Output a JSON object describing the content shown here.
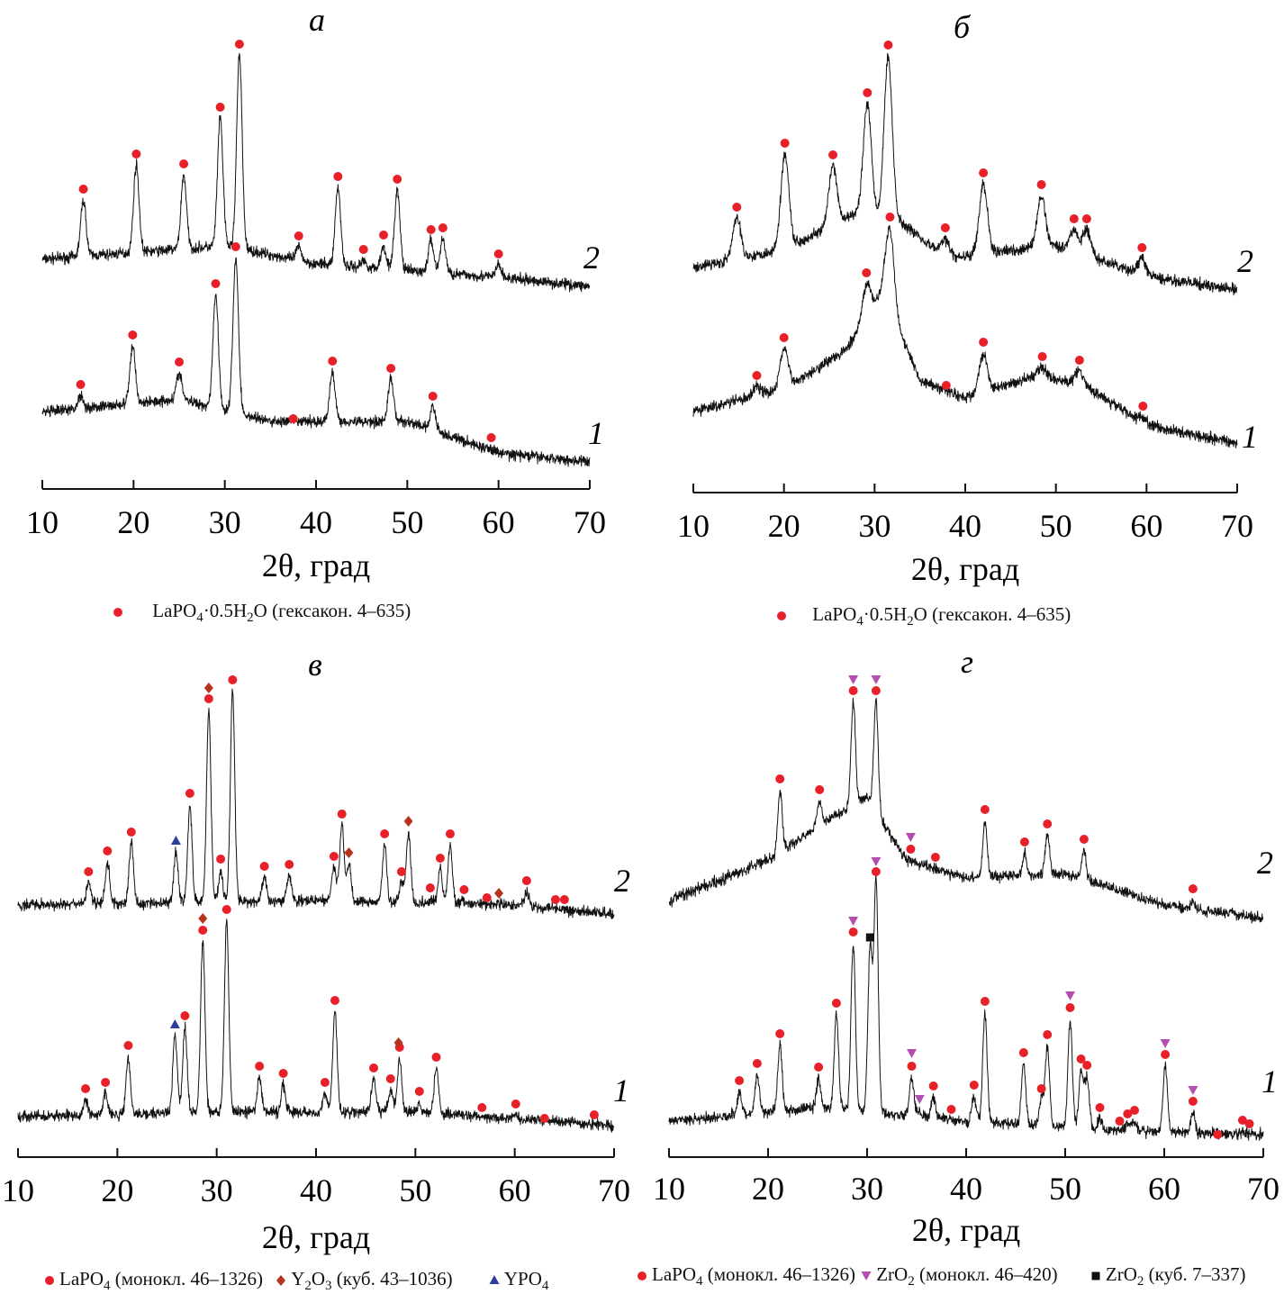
{
  "chart_data": [
    {
      "type": "line",
      "panel_label": "а",
      "xlabel": "2θ, град",
      "xlim": [
        10,
        70
      ],
      "xticks": [
        "10",
        "20",
        "30",
        "40",
        "50",
        "60",
        "70"
      ],
      "grid": false,
      "legend": [
        {
          "symbol": "circle",
          "color": "#e8202a",
          "label": "LaPO4·0.5H2O (гексакон. 4–635)"
        }
      ],
      "series": [
        {
          "name": "2",
          "background": [
            [
              10,
              51
            ],
            [
              30,
              54
            ],
            [
              40,
              50
            ],
            [
              60,
              47
            ],
            [
              70,
              45
            ]
          ],
          "markers": [
            {
              "legend": 0,
              "points": [
                [
                  14.5,
                  66.6
                ],
                [
                  20.3,
                  74.4
                ],
                [
                  25.5,
                  72.2
                ],
                [
                  29.5,
                  84.8
                ],
                [
                  31.6,
                  98.8
                ],
                [
                  38.1,
                  56.2
                ],
                [
                  42.4,
                  69.4
                ],
                [
                  45.2,
                  53.2
                ],
                [
                  47.4,
                  56.4
                ],
                [
                  48.9,
                  68.8
                ],
                [
                  52.6,
                  57.6
                ],
                [
                  53.9,
                  58
                ],
                [
                  60.0,
                  52.2
                ]
              ]
            }
          ]
        },
        {
          "name": "1",
          "background": [
            [
              10,
              17
            ],
            [
              25,
              20
            ],
            [
              35,
              15
            ],
            [
              50,
              15
            ],
            [
              60,
              8
            ],
            [
              70,
              6
            ]
          ],
          "markers": [
            {
              "legend": 0,
              "points": [
                [
                  14.2,
                  23.2
                ],
                [
                  19.9,
                  34.2
                ],
                [
                  25.0,
                  28.2
                ],
                [
                  29.0,
                  45.6
                ],
                [
                  31.2,
                  53.8
                ],
                [
                  37.5,
                  15.6
                ],
                [
                  41.8,
                  28.4
                ],
                [
                  48.2,
                  26.8
                ],
                [
                  52.8,
                  20.6
                ],
                [
                  59.2,
                  11.4
                ]
              ]
            }
          ]
        }
      ]
    },
    {
      "type": "line",
      "panel_label": "б",
      "xlabel": "2θ, град",
      "xlim": [
        10,
        70
      ],
      "xticks": [
        "10",
        "20",
        "30",
        "40",
        "50",
        "60",
        "70"
      ],
      "grid": false,
      "legend": [
        {
          "symbol": "circle",
          "color": "#e8202a",
          "label": "LaPO4·0.5H2O (гексакон. 4–635)"
        }
      ],
      "series": [
        {
          "name": "2",
          "background": [
            [
              10,
              50
            ],
            [
              20,
              54
            ],
            [
              28,
              62
            ],
            [
              33,
              60
            ],
            [
              38,
              52
            ],
            [
              50,
              55
            ],
            [
              60,
              48
            ],
            [
              70,
              45
            ]
          ],
          "markers": [
            {
              "legend": 0,
              "points": [
                [
                  14.8,
                  63.4
                ],
                [
                  20.1,
                  77.6
                ],
                [
                  25.4,
                  75
                ],
                [
                  29.2,
                  88.8
                ],
                [
                  31.5,
                  99.4
                ],
                [
                  37.8,
                  58.8
                ],
                [
                  42.0,
                  71
                ],
                [
                  48.4,
                  68.4
                ],
                [
                  52.0,
                  60.8
                ],
                [
                  53.4,
                  60.8
                ],
                [
                  59.5,
                  54.4
                ]
              ]
            }
          ]
        },
        {
          "name": "1",
          "background": [
            [
              10,
              18
            ],
            [
              20,
              23
            ],
            [
              27,
              32
            ],
            [
              31,
              45
            ],
            [
              35,
              25
            ],
            [
              40,
              21
            ],
            [
              48,
              26
            ],
            [
              53,
              24
            ],
            [
              60,
              15
            ],
            [
              70,
              11
            ]
          ],
          "markers": [
            {
              "legend": 0,
              "points": [
                [
                  17.0,
                  26
                ],
                [
                  20.0,
                  34.4
                ],
                [
                  29.1,
                  48.8
                ],
                [
                  31.7,
                  61.2
                ],
                [
                  37.9,
                  23.8
                ],
                [
                  42.0,
                  33.4
                ],
                [
                  48.5,
                  30.2
                ],
                [
                  52.6,
                  29.4
                ],
                [
                  59.6,
                  19.2
                ]
              ]
            }
          ]
        }
      ]
    },
    {
      "type": "line",
      "panel_label": "в",
      "xlabel": "2θ, град",
      "xlim": [
        10,
        70
      ],
      "xticks": [
        "10",
        "20",
        "30",
        "40",
        "50",
        "60",
        "70"
      ],
      "grid": false,
      "legend": [
        {
          "symbol": "circle",
          "color": "#e8202a",
          "label": "LaPO4 (монокл. 46–1326)"
        },
        {
          "symbol": "diamond",
          "color": "#b5341e",
          "label": "Y2O3 (куб. 43–1036)"
        },
        {
          "symbol": "triangle-up",
          "color": "#2e3d9c",
          "label": "YPO4"
        }
      ],
      "series": [
        {
          "name": "2",
          "background": [
            [
              10,
              56
            ],
            [
              40,
              57
            ],
            [
              60,
              56
            ],
            [
              70,
              54
            ]
          ],
          "markers": [
            {
              "legend": 0,
              "points": [
                [
                  17.1,
                  63.4
                ],
                [
                  19.0,
                  68
                ],
                [
                  21.4,
                  72.2
                ],
                [
                  27.3,
                  80.8
                ],
                [
                  29.2,
                  101.8
                ],
                [
                  31.6,
                  106
                ],
                [
                  30.4,
                  66.2
                ],
                [
                  34.8,
                  64.6
                ],
                [
                  37.3,
                  65
                ],
                [
                  41.8,
                  66.8
                ],
                [
                  42.6,
                  76.2
                ],
                [
                  46.9,
                  71.8
                ],
                [
                  48.6,
                  63.4
                ],
                [
                  51.5,
                  59.8
                ],
                [
                  52.5,
                  66.4
                ],
                [
                  53.5,
                  71.8
                ],
                [
                  54.9,
                  59.4
                ],
                [
                  57.2,
                  57.6
                ],
                [
                  61.2,
                  61.4
                ],
                [
                  64.1,
                  57.2
                ],
                [
                  65.0,
                  57.2
                ]
              ]
            },
            {
              "legend": 1,
              "points": [
                [
                  29.2,
                  104.2
                ],
                [
                  43.3,
                  67.6
                ],
                [
                  49.3,
                  74.6
                ],
                [
                  58.4,
                  58.6
                ]
              ]
            },
            {
              "legend": 2,
              "points": [
                [
                  25.9,
                  70.2
                ]
              ]
            }
          ]
        },
        {
          "name": "1",
          "background": [
            [
              10,
              9
            ],
            [
              30,
              10
            ],
            [
              50,
              10
            ],
            [
              70,
              7
            ]
          ],
          "markers": [
            {
              "legend": 0,
              "points": [
                [
                  16.8,
                  15.2
                ],
                [
                  18.8,
                  16.6
                ],
                [
                  21.1,
                  24.8
                ],
                [
                  26.8,
                  31.4
                ],
                [
                  28.6,
                  50.4
                ],
                [
                  31.0,
                  55
                ],
                [
                  34.3,
                  20.2
                ],
                [
                  36.7,
                  18.6
                ],
                [
                  40.9,
                  16.6
                ],
                [
                  41.9,
                  34.8
                ],
                [
                  45.8,
                  19.8
                ],
                [
                  47.5,
                  17.4
                ],
                [
                  48.4,
                  24.4
                ],
                [
                  50.4,
                  14.6
                ],
                [
                  52.1,
                  22.2
                ],
                [
                  56.7,
                  11
                ],
                [
                  60.1,
                  11.8
                ],
                [
                  63.0,
                  8.6
                ],
                [
                  68.0,
                  9.4
                ]
              ]
            },
            {
              "legend": 1,
              "points": [
                [
                  28.6,
                  53
                ],
                [
                  48.3,
                  25.4
                ]
              ]
            },
            {
              "legend": 2,
              "points": [
                [
                  25.8,
                  29.4
                ]
              ]
            }
          ]
        }
      ]
    },
    {
      "type": "line",
      "panel_label": "г",
      "xlabel": "2θ, град",
      "xlim": [
        10,
        70
      ],
      "xticks": [
        "10",
        "20",
        "30",
        "40",
        "50",
        "60",
        "70"
      ],
      "grid": false,
      "legend": [
        {
          "symbol": "circle",
          "color": "#e8202a",
          "label": "LaPO4 (монокл. 46–1326)"
        },
        {
          "symbol": "triangle-down",
          "color": "#b44fb0",
          "label": "ZrO2 (монокл. 46–420)"
        },
        {
          "symbol": "square",
          "color": "#111111",
          "label": "ZrO2 (куб. 7–337)"
        }
      ],
      "series": [
        {
          "name": "2",
          "background": [
            [
              10,
              57
            ],
            [
              20,
              66
            ],
            [
              26,
              75
            ],
            [
              30,
              80
            ],
            [
              34,
              66
            ],
            [
              40,
              62
            ],
            [
              50,
              63
            ],
            [
              60,
              56
            ],
            [
              70,
              53
            ]
          ],
          "markers": [
            {
              "legend": 0,
              "points": [
                [
                  21.2,
                  84
                ],
                [
                  25.2,
                  81.6
                ],
                [
                  28.6,
                  103.6
                ],
                [
                  30.9,
                  103.6
                ],
                [
                  34.4,
                  68.4
                ],
                [
                  36.9,
                  66.6
                ],
                [
                  41.9,
                  77.2
                ],
                [
                  45.9,
                  70
                ],
                [
                  48.2,
                  74
                ],
                [
                  51.9,
                  70.6
                ],
                [
                  62.9,
                  59.6
                ]
              ]
            },
            {
              "legend": 1,
              "points": [
                [
                  28.6,
                  106
                ],
                [
                  30.9,
                  106
                ],
                [
                  34.4,
                  71
                ]
              ]
            }
          ]
        },
        {
          "name": "1",
          "background": [
            [
              10,
              8
            ],
            [
              25,
              11
            ],
            [
              40,
              8
            ],
            [
              55,
              6
            ],
            [
              70,
              5
            ]
          ],
          "markers": [
            {
              "legend": 0,
              "points": [
                [
                  17.1,
                  17
                ],
                [
                  18.9,
                  20.8
                ],
                [
                  21.2,
                  27.4
                ],
                [
                  25.1,
                  20
                ],
                [
                  26.9,
                  34.2
                ],
                [
                  28.6,
                  50
                ],
                [
                  30.9,
                  63.4
                ],
                [
                  34.5,
                  20.2
                ],
                [
                  36.7,
                  15.8
                ],
                [
                  38.5,
                  10.6
                ],
                [
                  40.8,
                  16
                ],
                [
                  41.9,
                  34.6
                ],
                [
                  45.8,
                  23.2
                ],
                [
                  47.6,
                  15.2
                ],
                [
                  48.2,
                  27.2
                ],
                [
                  50.5,
                  33.2
                ],
                [
                  51.6,
                  21.8
                ],
                [
                  52.2,
                  20.4
                ],
                [
                  53.5,
                  11
                ],
                [
                  55.5,
                  8
                ],
                [
                  56.3,
                  9.6
                ],
                [
                  57.0,
                  10.4
                ],
                [
                  60.1,
                  22.8
                ],
                [
                  62.9,
                  12.4
                ],
                [
                  65.4,
                  5
                ],
                [
                  67.9,
                  8.2
                ],
                [
                  68.6,
                  7.4
                ]
              ]
            },
            {
              "legend": 1,
              "points": [
                [
                  28.6,
                  52.4
                ],
                [
                  30.9,
                  65.6
                ],
                [
                  34.5,
                  23
                ],
                [
                  35.3,
                  12.8
                ],
                [
                  50.5,
                  35.8
                ],
                [
                  60.1,
                  25.2
                ],
                [
                  62.9,
                  14.8
                ]
              ]
            },
            {
              "legend": 2,
              "points": [
                [
                  30.3,
                  48.8
                ]
              ]
            }
          ]
        }
      ]
    }
  ]
}
